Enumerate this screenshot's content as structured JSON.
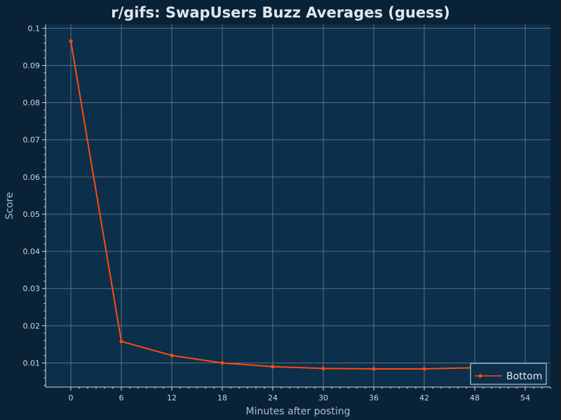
{
  "chart_data": {
    "type": "line",
    "title": "r/gifs: SwapUsers Buzz Averages (guess)",
    "xlabel": "Minutes after posting",
    "ylabel": "Score",
    "xlim": [
      -3,
      57
    ],
    "ylim": [
      0.0035,
      0.101
    ],
    "x_ticks": [
      0,
      6,
      12,
      18,
      24,
      30,
      36,
      42,
      48,
      54
    ],
    "y_ticks": [
      0.01,
      0.02,
      0.03,
      0.04,
      0.05,
      0.06,
      0.07,
      0.08,
      0.09,
      0.1
    ],
    "grid": true,
    "legend_position": "bottom-right",
    "colors": {
      "background": "#0a2236",
      "plot_background": "#0c2f4b",
      "grid": "#5e6f80",
      "axis": "#d0dbe5",
      "series": "#ff4a0a"
    },
    "series": [
      {
        "name": "Bottom",
        "x": [
          0,
          6,
          12,
          18,
          24,
          30,
          36,
          42,
          48,
          54
        ],
        "y": [
          0.0965,
          0.0158,
          0.012,
          0.01,
          0.009,
          0.0085,
          0.0084,
          0.0084,
          0.0087,
          0.0091
        ]
      }
    ]
  }
}
